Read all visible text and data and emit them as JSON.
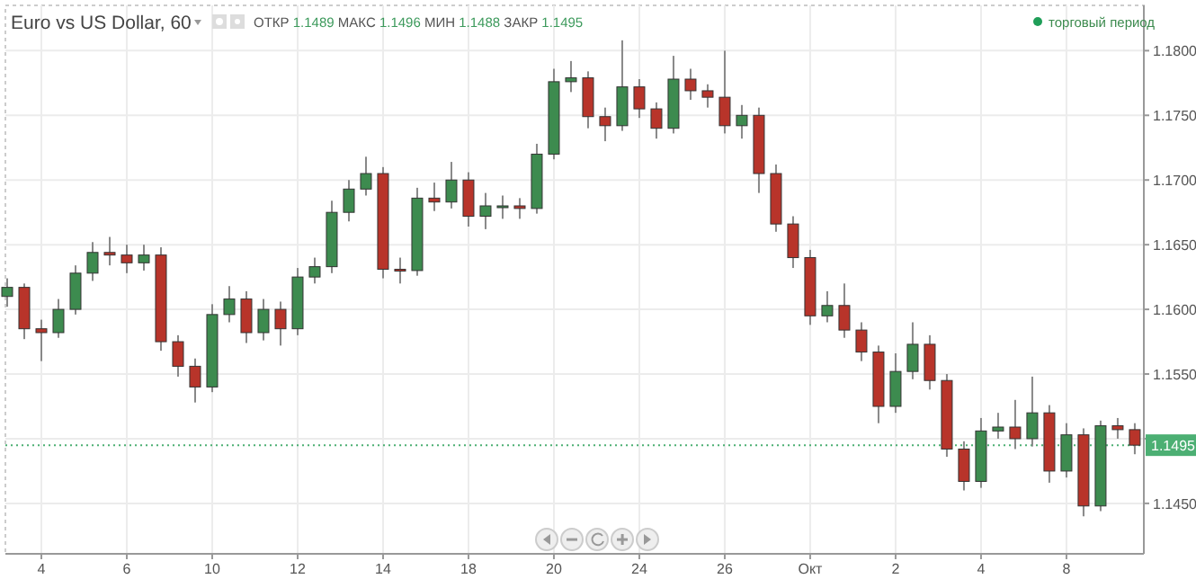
{
  "chart_data": {
    "type": "candlestick",
    "title": "Euro vs US Dollar, 60",
    "annotations": [
      "ОТКР 1.1489 МАКС 1.1496 МИН 1.1488 ЗАКР 1.1495",
      "торговый период"
    ],
    "categories": [
      null,
      null,
      "4",
      null,
      null,
      null,
      null,
      "6",
      null,
      null,
      null,
      null,
      "10",
      null,
      null,
      null,
      null,
      "12",
      null,
      null,
      null,
      null,
      "14",
      null,
      null,
      null,
      null,
      "18",
      null,
      null,
      null,
      null,
      "20",
      null,
      null,
      null,
      null,
      "24",
      null,
      null,
      null,
      null,
      "26",
      null,
      null,
      null,
      null,
      "Окт",
      null,
      null,
      null,
      null,
      "2",
      null,
      null,
      null,
      null,
      "4",
      null,
      null,
      null,
      null,
      "8",
      null,
      null,
      null,
      null
    ],
    "ohlc": [
      [
        1.161,
        1.1624,
        1.1602,
        1.1617
      ],
      [
        1.1617,
        1.162,
        1.1577,
        1.1585
      ],
      [
        1.1585,
        1.1592,
        1.156,
        1.1582
      ],
      [
        1.1582,
        1.1608,
        1.1578,
        1.16
      ],
      [
        1.16,
        1.1634,
        1.1596,
        1.1628
      ],
      [
        1.1628,
        1.1652,
        1.1622,
        1.1644
      ],
      [
        1.1644,
        1.1656,
        1.1634,
        1.1642
      ],
      [
        1.1642,
        1.165,
        1.1628,
        1.1636
      ],
      [
        1.1636,
        1.165,
        1.163,
        1.1642
      ],
      [
        1.1642,
        1.1648,
        1.1568,
        1.1575
      ],
      [
        1.1575,
        1.158,
        1.1548,
        1.1556
      ],
      [
        1.1556,
        1.1562,
        1.1528,
        1.154
      ],
      [
        1.154,
        1.1604,
        1.1536,
        1.1596
      ],
      [
        1.1596,
        1.1618,
        1.159,
        1.1608
      ],
      [
        1.1608,
        1.1614,
        1.1574,
        1.1582
      ],
      [
        1.1582,
        1.1608,
        1.1576,
        1.16
      ],
      [
        1.16,
        1.1606,
        1.1572,
        1.1585
      ],
      [
        1.1585,
        1.1632,
        1.158,
        1.1625
      ],
      [
        1.1625,
        1.164,
        1.162,
        1.1633
      ],
      [
        1.1633,
        1.1684,
        1.1628,
        1.1675
      ],
      [
        1.1675,
        1.17,
        1.1668,
        1.1693
      ],
      [
        1.1693,
        1.1718,
        1.1688,
        1.1705
      ],
      [
        1.1705,
        1.171,
        1.1624,
        1.1631
      ],
      [
        1.1631,
        1.164,
        1.162,
        1.163
      ],
      [
        1.163,
        1.1694,
        1.1626,
        1.1686
      ],
      [
        1.1686,
        1.1698,
        1.1676,
        1.1683
      ],
      [
        1.1683,
        1.1714,
        1.1678,
        1.17
      ],
      [
        1.17,
        1.1706,
        1.1664,
        1.1672
      ],
      [
        1.1672,
        1.169,
        1.1662,
        1.168
      ],
      [
        1.168,
        1.1688,
        1.167,
        1.168
      ],
      [
        1.168,
        1.1686,
        1.167,
        1.1678
      ],
      [
        1.1678,
        1.1728,
        1.1674,
        1.172
      ],
      [
        1.172,
        1.1786,
        1.1716,
        1.1776
      ],
      [
        1.1776,
        1.1792,
        1.1768,
        1.1779
      ],
      [
        1.1779,
        1.1784,
        1.174,
        1.1749
      ],
      [
        1.1749,
        1.1756,
        1.173,
        1.1742
      ],
      [
        1.1742,
        1.1808,
        1.1738,
        1.1772
      ],
      [
        1.1772,
        1.1778,
        1.1748,
        1.1755
      ],
      [
        1.1755,
        1.176,
        1.1732,
        1.174
      ],
      [
        1.174,
        1.1796,
        1.1736,
        1.1778
      ],
      [
        1.1778,
        1.1786,
        1.1762,
        1.1769
      ],
      [
        1.1769,
        1.1774,
        1.1756,
        1.1764
      ],
      [
        1.1764,
        1.18,
        1.1736,
        1.1742
      ],
      [
        1.1742,
        1.1758,
        1.1732,
        1.175
      ],
      [
        1.175,
        1.1756,
        1.169,
        1.1705
      ],
      [
        1.1705,
        1.1712,
        1.166,
        1.1666
      ],
      [
        1.1666,
        1.1672,
        1.1632,
        1.164
      ],
      [
        1.164,
        1.1646,
        1.1588,
        1.1595
      ],
      [
        1.1595,
        1.1614,
        1.159,
        1.1603
      ],
      [
        1.1603,
        1.162,
        1.1578,
        1.1584
      ],
      [
        1.1584,
        1.159,
        1.156,
        1.1567
      ],
      [
        1.1567,
        1.1572,
        1.1512,
        1.1525
      ],
      [
        1.1525,
        1.1566,
        1.152,
        1.1552
      ],
      [
        1.1552,
        1.159,
        1.1546,
        1.1573
      ],
      [
        1.1573,
        1.158,
        1.1538,
        1.1545
      ],
      [
        1.1545,
        1.155,
        1.1486,
        1.1492
      ],
      [
        1.1492,
        1.1498,
        1.146,
        1.1467
      ],
      [
        1.1467,
        1.1516,
        1.1462,
        1.1506
      ],
      [
        1.1506,
        1.152,
        1.15,
        1.1509
      ],
      [
        1.1509,
        1.153,
        1.1492,
        1.15
      ],
      [
        1.15,
        1.1548,
        1.1494,
        1.152
      ],
      [
        1.152,
        1.1526,
        1.1466,
        1.1475
      ],
      [
        1.1475,
        1.1512,
        1.147,
        1.1503
      ],
      [
        1.1503,
        1.1508,
        1.144,
        1.1448
      ],
      [
        1.1448,
        1.1514,
        1.1444,
        1.151
      ],
      [
        1.151,
        1.1516,
        1.15,
        1.1507
      ],
      [
        1.1507,
        1.1512,
        1.1488,
        1.1495
      ]
    ],
    "colors": [
      "#3d8b4f",
      "#b8342a",
      "#b8342a",
      "#3d8b4f",
      "#3d8b4f",
      "#3d8b4f",
      "#b8342a",
      "#b8342a",
      "#3d8b4f",
      "#b8342a",
      "#b8342a",
      "#b8342a",
      "#3d8b4f",
      "#3d8b4f",
      "#b8342a",
      "#3d8b4f",
      "#b8342a",
      "#3d8b4f",
      "#3d8b4f",
      "#3d8b4f",
      "#3d8b4f",
      "#3d8b4f",
      "#b8342a",
      "#b8342a",
      "#3d8b4f",
      "#b8342a",
      "#3d8b4f",
      "#b8342a",
      "#3d8b4f",
      "#3d8b4f",
      "#b8342a",
      "#3d8b4f",
      "#3d8b4f",
      "#3d8b4f",
      "#b8342a",
      "#b8342a",
      "#3d8b4f",
      "#b8342a",
      "#b8342a",
      "#3d8b4f",
      "#b8342a",
      "#b8342a",
      "#b8342a",
      "#3d8b4f",
      "#b8342a",
      "#b8342a",
      "#b8342a",
      "#b8342a",
      "#3d8b4f",
      "#b8342a",
      "#b8342a",
      "#b8342a",
      "#3d8b4f",
      "#3d8b4f",
      "#b8342a",
      "#b8342a",
      "#b8342a",
      "#3d8b4f",
      "#3d8b4f",
      "#b8342a",
      "#3d8b4f",
      "#b8342a",
      "#3d8b4f",
      "#b8342a",
      "#3d8b4f",
      "#b8342a",
      "#b8342a"
    ],
    "ylim": [
      1.1411,
      1.1835
    ],
    "yticks": [
      {
        "value": 1.145,
        "label": "1.1450"
      },
      {
        "value": 1.15,
        "label": null
      },
      {
        "value": 1.155,
        "label": "1.1550"
      },
      {
        "value": 1.16,
        "label": "1.1600"
      },
      {
        "value": 1.165,
        "label": "1.1650"
      },
      {
        "value": 1.17,
        "label": "1.1700"
      },
      {
        "value": 1.175,
        "label": "1.1750"
      },
      {
        "value": 1.18,
        "label": "1.1800"
      }
    ],
    "grid": true,
    "ref_lines": [
      {
        "axis": "y",
        "value": 1.1495,
        "label": "1.1495",
        "color": "#4caf73",
        "line_style": "dotted"
      }
    ]
  }
}
